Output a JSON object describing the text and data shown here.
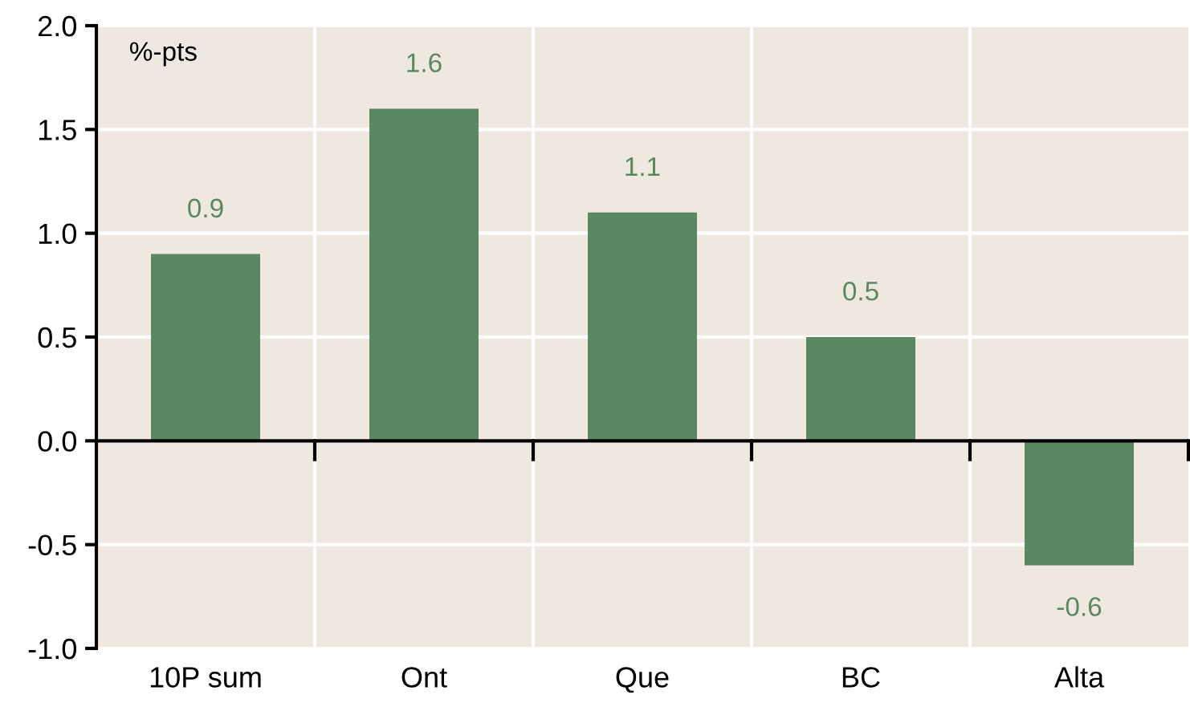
{
  "chart_data": {
    "type": "bar",
    "ylabel": "%-pts",
    "categories": [
      "10P sum",
      "Ont",
      "Que",
      "BC",
      "Alta"
    ],
    "values": [
      0.9,
      1.6,
      1.1,
      0.5,
      -0.6
    ],
    "color": "#5a8862",
    "ylim": [
      -1.0,
      2.0
    ],
    "yticks": [
      {
        "value": -1.0,
        "label": "-1.0"
      },
      {
        "value": -0.5,
        "label": "-0.5"
      },
      {
        "value": 0.0,
        "label": "0.0"
      },
      {
        "value": 0.5,
        "label": "0.5"
      },
      {
        "value": 1.0,
        "label": "1.0"
      },
      {
        "value": 1.5,
        "label": "1.5"
      },
      {
        "value": 2.0,
        "label": "2.0"
      }
    ],
    "grid": true,
    "data_labels": true,
    "tick_labels": "xy"
  }
}
